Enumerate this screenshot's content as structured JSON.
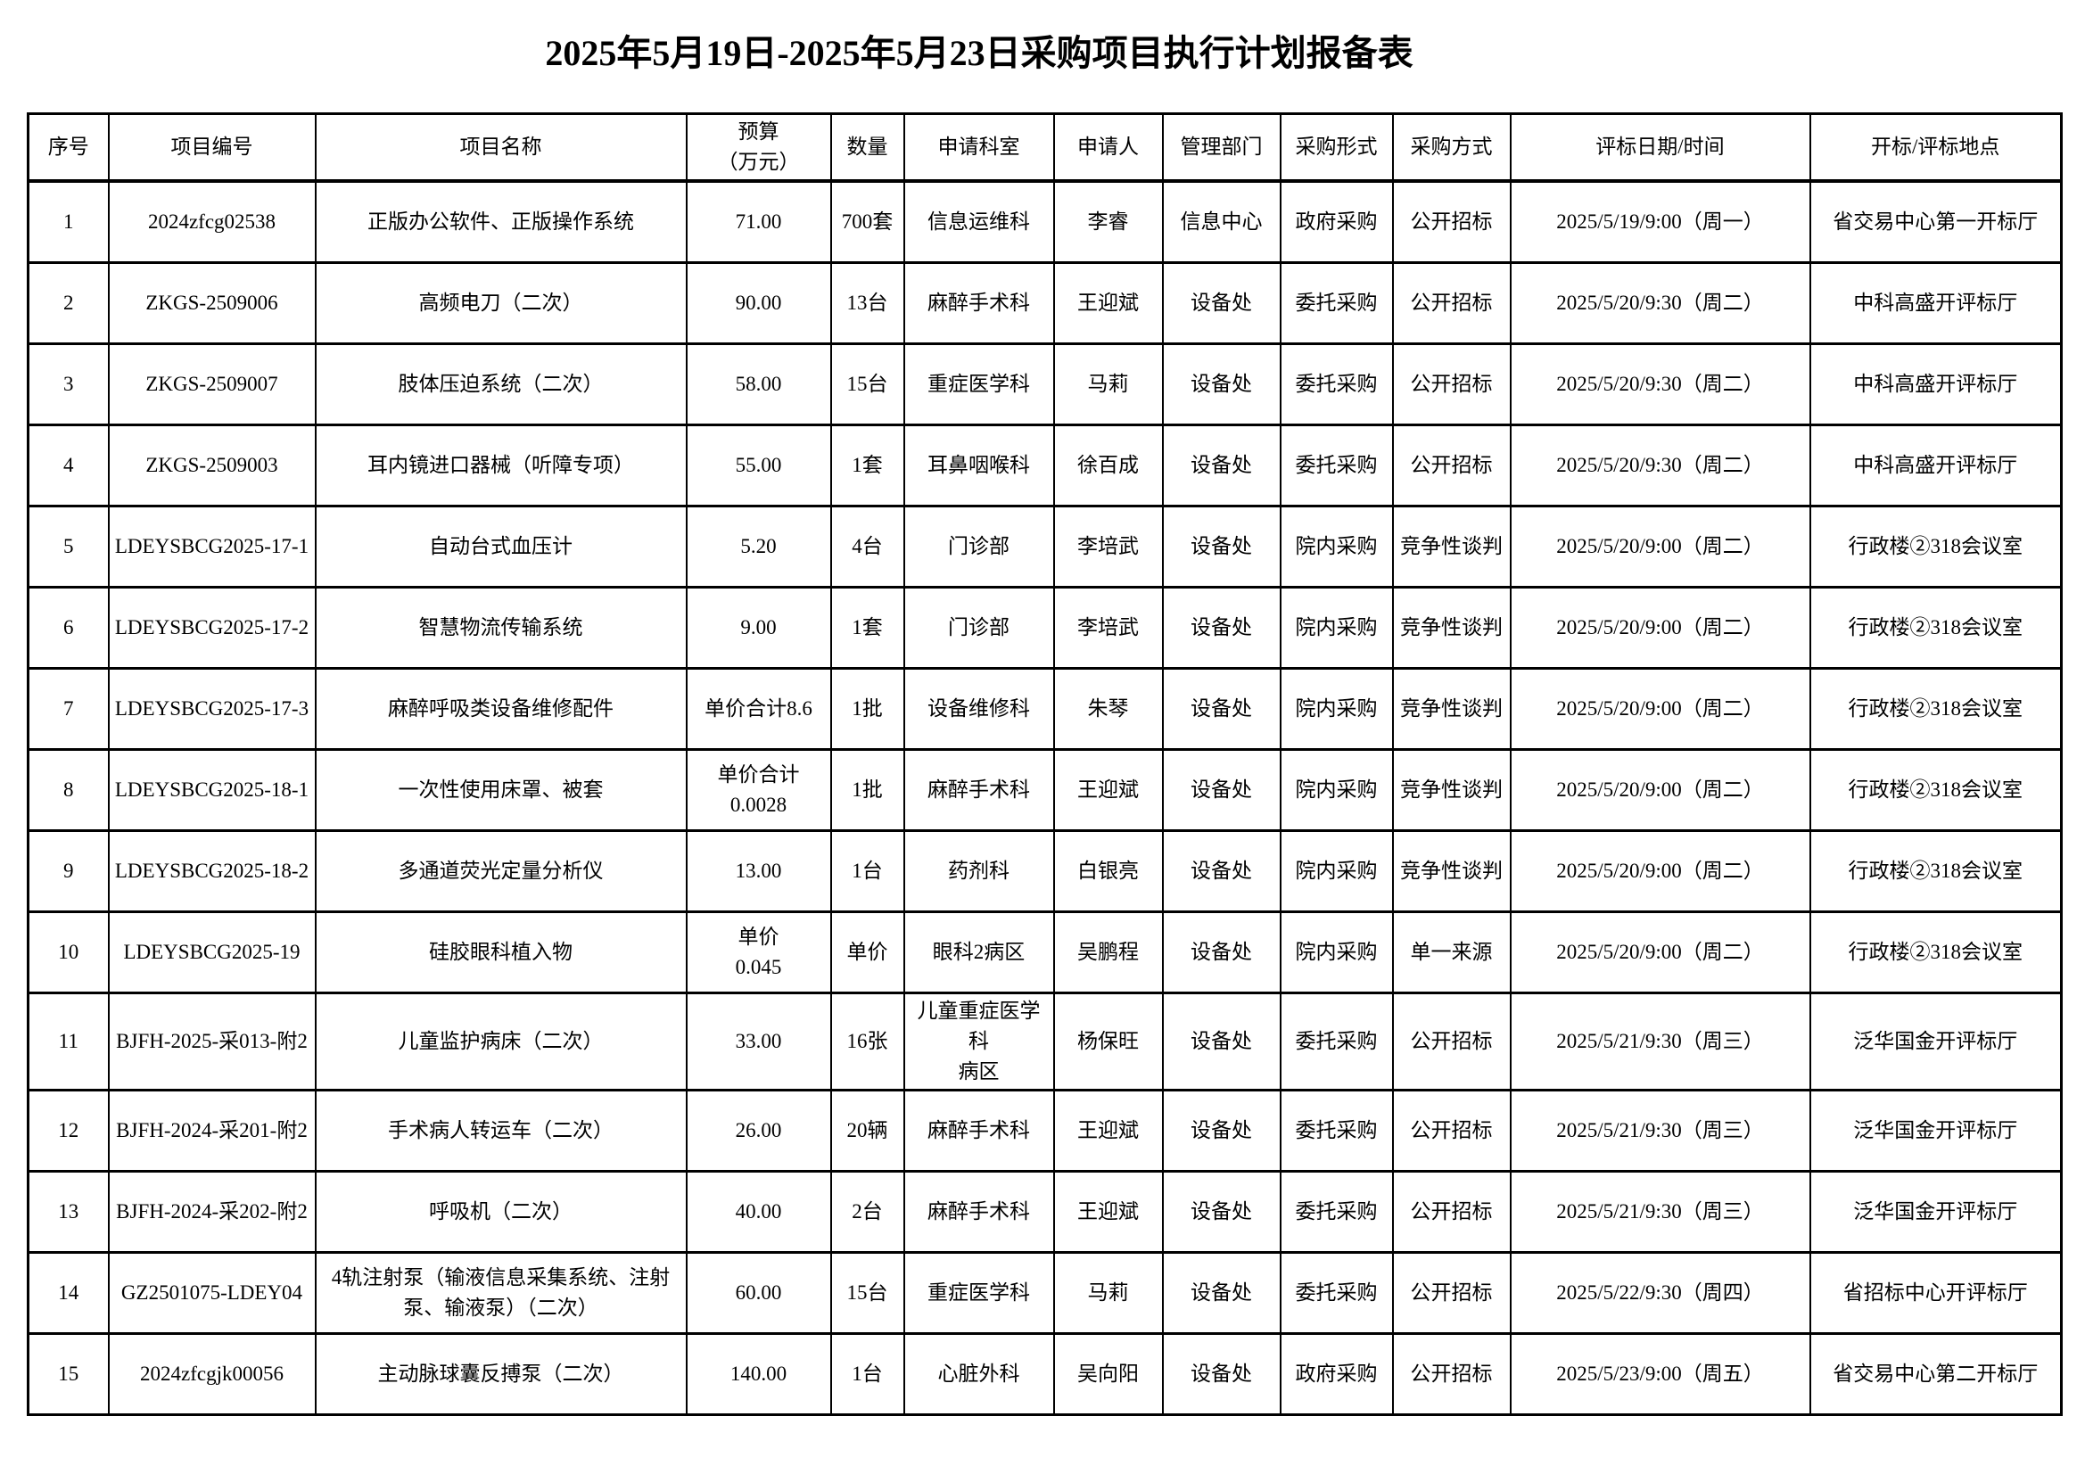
{
  "title": "2025年5月19日-2025年5月23日采购项目执行计划报备表",
  "table": {
    "headers": [
      "序号",
      "项目编号",
      "项目名称",
      "预算\n（万元）",
      "数量",
      "申请科室",
      "申请人",
      "管理部门",
      "采购形式",
      "采购方式",
      "评标日期/时间",
      "开标/评标地点"
    ],
    "rows": [
      [
        "1",
        "2024zfcg02538",
        "正版办公软件、正版操作系统",
        "71.00",
        "700套",
        "信息运维科",
        "李睿",
        "信息中心",
        "政府采购",
        "公开招标",
        "2025/5/19/9:00（周一）",
        "省交易中心第一开标厅"
      ],
      [
        "2",
        "ZKGS-2509006",
        "高频电刀（二次）",
        "90.00",
        "13台",
        "麻醉手术科",
        "王迎斌",
        "设备处",
        "委托采购",
        "公开招标",
        "2025/5/20/9:30（周二）",
        "中科高盛开评标厅"
      ],
      [
        "3",
        "ZKGS-2509007",
        "肢体压迫系统（二次）",
        "58.00",
        "15台",
        "重症医学科",
        "马莉",
        "设备处",
        "委托采购",
        "公开招标",
        "2025/5/20/9:30（周二）",
        "中科高盛开评标厅"
      ],
      [
        "4",
        "ZKGS-2509003",
        "耳内镜进口器械（听障专项）",
        "55.00",
        "1套",
        "耳鼻咽喉科",
        "徐百成",
        "设备处",
        "委托采购",
        "公开招标",
        "2025/5/20/9:30（周二）",
        "中科高盛开评标厅"
      ],
      [
        "5",
        "LDEYSBCG2025-17-1",
        "自动台式血压计",
        "5.20",
        "4台",
        "门诊部",
        "李培武",
        "设备处",
        "院内采购",
        "竞争性谈判",
        "2025/5/20/9:00（周二）",
        "行政楼②318会议室"
      ],
      [
        "6",
        "LDEYSBCG2025-17-2",
        "智慧物流传输系统",
        "9.00",
        "1套",
        "门诊部",
        "李培武",
        "设备处",
        "院内采购",
        "竞争性谈判",
        "2025/5/20/9:00（周二）",
        "行政楼②318会议室"
      ],
      [
        "7",
        "LDEYSBCG2025-17-3",
        "麻醉呼吸类设备维修配件",
        "单价合计8.6",
        "1批",
        "设备维修科",
        "朱琴",
        "设备处",
        "院内采购",
        "竞争性谈判",
        "2025/5/20/9:00（周二）",
        "行政楼②318会议室"
      ],
      [
        "8",
        "LDEYSBCG2025-18-1",
        "一次性使用床罩、被套",
        "单价合计\n0.0028",
        "1批",
        "麻醉手术科",
        "王迎斌",
        "设备处",
        "院内采购",
        "竞争性谈判",
        "2025/5/20/9:00（周二）",
        "行政楼②318会议室"
      ],
      [
        "9",
        "LDEYSBCG2025-18-2",
        "多通道荧光定量分析仪",
        "13.00",
        "1台",
        "药剂科",
        "白银亮",
        "设备处",
        "院内采购",
        "竞争性谈判",
        "2025/5/20/9:00（周二）",
        "行政楼②318会议室"
      ],
      [
        "10",
        "LDEYSBCG2025-19",
        "硅胶眼科植入物",
        "单价\n0.045",
        "单价",
        "眼科2病区",
        "吴鹏程",
        "设备处",
        "院内采购",
        "单一来源",
        "2025/5/20/9:00（周二）",
        "行政楼②318会议室"
      ],
      [
        "11",
        "BJFH-2025-采013-附2",
        "儿童监护病床（二次）",
        "33.00",
        "16张",
        "儿童重症医学科\n病区",
        "杨保旺",
        "设备处",
        "委托采购",
        "公开招标",
        "2025/5/21/9:30（周三）",
        "泛华国金开评标厅"
      ],
      [
        "12",
        "BJFH-2024-采201-附2",
        "手术病人转运车（二次）",
        "26.00",
        "20辆",
        "麻醉手术科",
        "王迎斌",
        "设备处",
        "委托采购",
        "公开招标",
        "2025/5/21/9:30（周三）",
        "泛华国金开评标厅"
      ],
      [
        "13",
        "BJFH-2024-采202-附2",
        "呼吸机（二次）",
        "40.00",
        "2台",
        "麻醉手术科",
        "王迎斌",
        "设备处",
        "委托采购",
        "公开招标",
        "2025/5/21/9:30（周三）",
        "泛华国金开评标厅"
      ],
      [
        "14",
        "GZ2501075-LDEY04",
        "4轨注射泵（输液信息采集系统、注射泵、输液泵）（二次）",
        "60.00",
        "15台",
        "重症医学科",
        "马莉",
        "设备处",
        "委托采购",
        "公开招标",
        "2025/5/22/9:30（周四）",
        "省招标中心开评标厅"
      ],
      [
        "15",
        "2024zfcgjk00056",
        "主动脉球囊反搏泵（二次）",
        "140.00",
        "1台",
        "心脏外科",
        "吴向阳",
        "设备处",
        "政府采购",
        "公开招标",
        "2025/5/23/9:00（周五）",
        "省交易中心第二开标厅"
      ]
    ]
  }
}
